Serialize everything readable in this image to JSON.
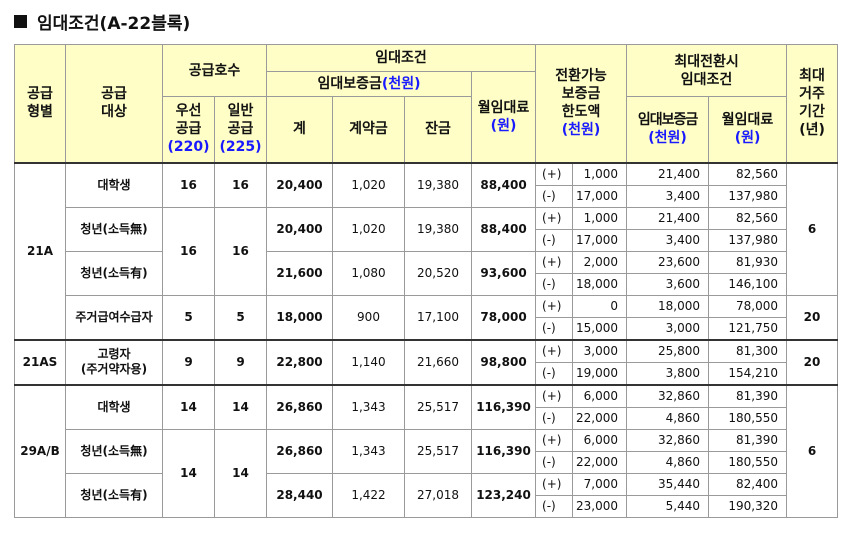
{
  "title": "임대조건(A-22블록)",
  "header": {
    "type": "공급\n형별",
    "target": "공급\n대상",
    "supply_units": "공급호수",
    "priority": "우선\n공급",
    "priority_count": "(220)",
    "general": "일반\n공급",
    "general_count": "(225)",
    "lease_terms": "임대조건",
    "deposit": "임대보증금",
    "deposit_unit": "(천원)",
    "total": "계",
    "contract_fee": "계약금",
    "balance": "잔금",
    "monthly_rent": "월임대료",
    "monthly_unit": "(원)",
    "convertible": "전환가능\n보증금\n한도액",
    "convertible_unit": "(천원)",
    "max_conversion": "최대전환시\n임대조건",
    "max_deposit": "임대보증금",
    "max_deposit_unit": "(천원)",
    "max_rent": "월임대료",
    "max_rent_unit": "(원)",
    "max_period": "최대\n거주\n기간\n(년)"
  },
  "rows": [
    {
      "type": "21A",
      "target": "대학생",
      "pri": "16",
      "gen": "16",
      "total": "20,400",
      "contract": "1,020",
      "balance": "19,380",
      "rent": "88,400",
      "plus": "1,000",
      "plus_dep": "21,400",
      "plus_rent": "82,560",
      "minus": "17,000",
      "minus_dep": "3,400",
      "minus_rent": "137,980",
      "period": ""
    },
    {
      "type": "",
      "target": "청년(소득無)",
      "pri": "16",
      "gen": "16",
      "total": "20,400",
      "contract": "1,020",
      "balance": "19,380",
      "rent": "88,400",
      "plus": "1,000",
      "plus_dep": "21,400",
      "plus_rent": "82,560",
      "minus": "17,000",
      "minus_dep": "3,400",
      "minus_rent": "137,980",
      "period": "6"
    },
    {
      "type": "",
      "target": "청년(소득有)",
      "pri": "",
      "gen": "",
      "total": "21,600",
      "contract": "1,080",
      "balance": "20,520",
      "rent": "93,600",
      "plus": "2,000",
      "plus_dep": "23,600",
      "plus_rent": "81,930",
      "minus": "18,000",
      "minus_dep": "3,600",
      "minus_rent": "146,100",
      "period": ""
    },
    {
      "type": "",
      "target": "주거급여수급자",
      "pri": "5",
      "gen": "5",
      "total": "18,000",
      "contract": "900",
      "balance": "17,100",
      "rent": "78,000",
      "plus": "0",
      "plus_dep": "18,000",
      "plus_rent": "78,000",
      "minus": "15,000",
      "minus_dep": "3,000",
      "minus_rent": "121,750",
      "period": "20"
    },
    {
      "type": "21AS",
      "target": "고령자\n(주거약자용)",
      "pri": "9",
      "gen": "9",
      "total": "22,800",
      "contract": "1,140",
      "balance": "21,660",
      "rent": "98,800",
      "plus": "3,000",
      "plus_dep": "25,800",
      "plus_rent": "81,300",
      "minus": "19,000",
      "minus_dep": "3,800",
      "minus_rent": "154,210",
      "period": "20"
    },
    {
      "type": "29A/B",
      "target": "대학생",
      "pri": "14",
      "gen": "14",
      "total": "26,860",
      "contract": "1,343",
      "balance": "25,517",
      "rent": "116,390",
      "plus": "6,000",
      "plus_dep": "32,860",
      "plus_rent": "81,390",
      "minus": "22,000",
      "minus_dep": "4,860",
      "minus_rent": "180,550",
      "period": ""
    },
    {
      "type": "",
      "target": "청년(소득無)",
      "pri": "14",
      "gen": "14",
      "total": "26,860",
      "contract": "1,343",
      "balance": "25,517",
      "rent": "116,390",
      "plus": "6,000",
      "plus_dep": "32,860",
      "plus_rent": "81,390",
      "minus": "22,000",
      "minus_dep": "4,860",
      "minus_rent": "180,550",
      "period": "6"
    },
    {
      "type": "",
      "target": "청년(소득有)",
      "pri": "",
      "gen": "",
      "total": "28,440",
      "contract": "1,422",
      "balance": "27,018",
      "rent": "123,240",
      "plus": "7,000",
      "plus_dep": "35,440",
      "plus_rent": "82,400",
      "minus": "23,000",
      "minus_dep": "5,440",
      "minus_rent": "190,320",
      "period": ""
    }
  ],
  "signs": {
    "plus": "(+)",
    "minus": "(-)"
  }
}
